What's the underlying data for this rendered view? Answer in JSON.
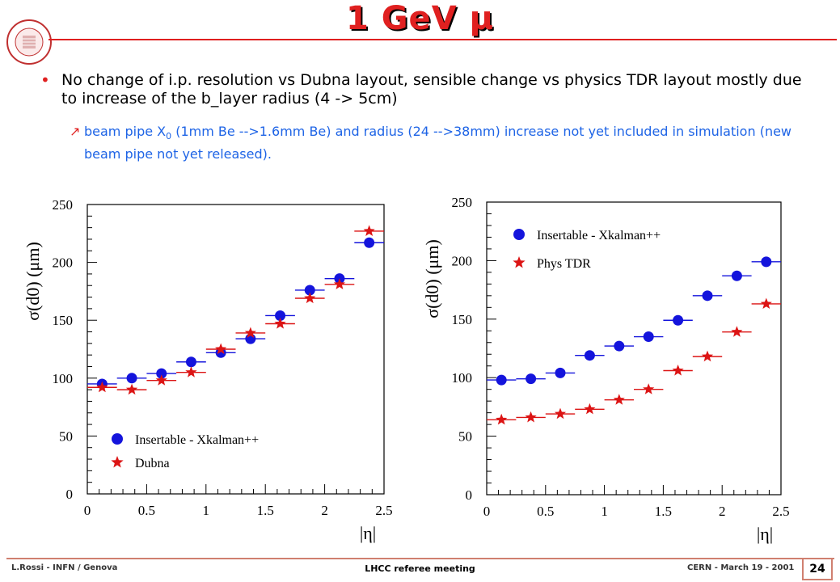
{
  "slide": {
    "title": "1 GeV μ",
    "bullet1": "No change of i.p. resolution vs Dubna layout, sensible change vs physics TDR layout mostly due to increase of the b_layer radius (4 -> 5cm)",
    "bullet2_pre": "beam pipe X",
    "bullet2_sub": "0",
    "bullet2_post": " (1mm Be -->1.6mm Be) and radius (24 -->38mm) increase not yet included in simulation (new beam pipe not yet released).",
    "logo_text": "ATLAS Pixel Detector Collaboration"
  },
  "footer": {
    "left": "L.Rossi - INFN / Genova",
    "center": "LHCC referee meeting",
    "right": "CERN - March 19 - 2001",
    "page": "24"
  },
  "colors": {
    "title": "#e02020",
    "sub_bullet": "#1e64e6",
    "blue_series": "#1414dc",
    "red_series": "#dc1414"
  },
  "chart_data": [
    {
      "type": "scatter",
      "ylabel": "σ(d0) (μm)",
      "xlabel": "|η|",
      "xlim": [
        0,
        2.5
      ],
      "ylim": [
        0,
        250
      ],
      "xticks": [
        "0",
        "0.5",
        "1",
        "1.5",
        "2",
        "2.5"
      ],
      "yticks": [
        "0",
        "50",
        "100",
        "150",
        "200",
        "250"
      ],
      "legend_position": "bottom-left",
      "series": [
        {
          "name": "Insertable - Xkalman++",
          "marker": "circle",
          "color": "#1414dc",
          "x": [
            0.125,
            0.375,
            0.625,
            0.875,
            1.125,
            1.375,
            1.625,
            1.875,
            2.125,
            2.375
          ],
          "y": [
            95,
            100,
            104,
            114,
            122,
            134,
            154,
            176,
            186,
            217
          ]
        },
        {
          "name": "Dubna",
          "marker": "star",
          "color": "#dc1414",
          "x": [
            0.125,
            0.375,
            0.625,
            0.875,
            1.125,
            1.375,
            1.625,
            1.875,
            2.125,
            2.375
          ],
          "y": [
            92,
            90,
            98,
            105,
            125,
            139,
            147,
            169,
            181,
            227
          ]
        }
      ]
    },
    {
      "type": "scatter",
      "ylabel": "σ(d0) (μm)",
      "xlabel": "|η|",
      "xlim": [
        0,
        2.5
      ],
      "ylim": [
        0,
        250
      ],
      "xticks": [
        "0",
        "0.5",
        "1",
        "1.5",
        "2",
        "2.5"
      ],
      "yticks": [
        "0",
        "50",
        "100",
        "150",
        "200",
        "250"
      ],
      "legend_position": "top-left",
      "series": [
        {
          "name": "Insertable - Xkalman++",
          "marker": "circle",
          "color": "#1414dc",
          "x": [
            0.125,
            0.375,
            0.625,
            0.875,
            1.125,
            1.375,
            1.625,
            1.875,
            2.125,
            2.375
          ],
          "y": [
            98,
            99,
            104,
            119,
            127,
            135,
            149,
            170,
            187,
            199
          ]
        },
        {
          "name": "Phys TDR",
          "marker": "star",
          "color": "#dc1414",
          "x": [
            0.125,
            0.375,
            0.625,
            0.875,
            1.125,
            1.375,
            1.625,
            1.875,
            2.125,
            2.375
          ],
          "y": [
            64,
            66,
            69,
            73,
            81,
            90,
            106,
            118,
            139,
            163
          ]
        }
      ]
    }
  ]
}
